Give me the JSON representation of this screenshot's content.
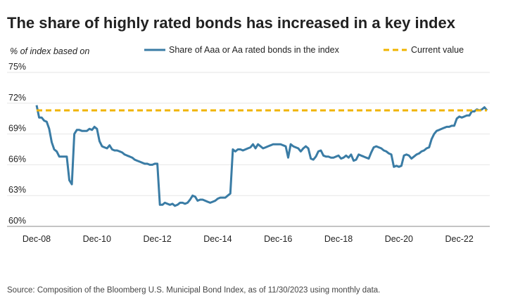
{
  "chart_data": {
    "type": "line",
    "title": "The share of highly rated bonds has increased in a key index",
    "subtitle": "% of index based on",
    "source": "Source: Composition of the Bloomberg U.S. Municipal Bond Index, as of 11/30/2023 using monthly data.",
    "x": [
      "Dec-08",
      "Jan-09",
      "Feb-09",
      "Mar-09",
      "Apr-09",
      "May-09",
      "Jun-09",
      "Jul-09",
      "Aug-09",
      "Sep-09",
      "Oct-09",
      "Nov-09",
      "Dec-09",
      "Jan-10",
      "Feb-10",
      "Mar-10",
      "Apr-10",
      "May-10",
      "Jun-10",
      "Jul-10",
      "Aug-10",
      "Sep-10",
      "Oct-10",
      "Nov-10",
      "Dec-10",
      "Jan-11",
      "Feb-11",
      "Mar-11",
      "Apr-11",
      "May-11",
      "Jun-11",
      "Jul-11",
      "Aug-11",
      "Sep-11",
      "Oct-11",
      "Nov-11",
      "Dec-11",
      "Jan-12",
      "Feb-12",
      "Mar-12",
      "Apr-12",
      "May-12",
      "Jun-12",
      "Jul-12",
      "Aug-12",
      "Sep-12",
      "Oct-12",
      "Nov-12",
      "Dec-12",
      "Jan-13",
      "Feb-13",
      "Mar-13",
      "Apr-13",
      "May-13",
      "Jun-13",
      "Jul-13",
      "Aug-13",
      "Sep-13",
      "Oct-13",
      "Nov-13",
      "Dec-13",
      "Jan-14",
      "Feb-14",
      "Mar-14",
      "Apr-14",
      "May-14",
      "Jun-14",
      "Jul-14",
      "Aug-14",
      "Sep-14",
      "Oct-14",
      "Nov-14",
      "Dec-14",
      "Jan-15",
      "Feb-15",
      "Mar-15",
      "Apr-15",
      "May-15",
      "Jun-15",
      "Jul-15",
      "Aug-15",
      "Sep-15",
      "Oct-15",
      "Nov-15",
      "Dec-15",
      "Jan-16",
      "Feb-16",
      "Mar-16",
      "Apr-16",
      "May-16",
      "Jun-16",
      "Jul-16",
      "Aug-16",
      "Sep-16",
      "Oct-16",
      "Nov-16",
      "Dec-16",
      "Jan-17",
      "Feb-17",
      "Mar-17",
      "Apr-17",
      "May-17",
      "Jun-17",
      "Jul-17",
      "Aug-17",
      "Sep-17",
      "Oct-17",
      "Nov-17",
      "Dec-17",
      "Jan-18",
      "Feb-18",
      "Mar-18",
      "Apr-18",
      "May-18",
      "Jun-18",
      "Jul-18",
      "Aug-18",
      "Sep-18",
      "Oct-18",
      "Nov-18",
      "Dec-18",
      "Jan-19",
      "Feb-19",
      "Mar-19",
      "Apr-19",
      "May-19",
      "Jun-19",
      "Jul-19",
      "Aug-19",
      "Sep-19",
      "Oct-19",
      "Nov-19",
      "Dec-19",
      "Jan-20",
      "Feb-20",
      "Mar-20",
      "Apr-20",
      "May-20",
      "Jun-20",
      "Jul-20",
      "Aug-20",
      "Sep-20",
      "Oct-20",
      "Nov-20",
      "Dec-20",
      "Jan-21",
      "Feb-21",
      "Mar-21",
      "Apr-21",
      "May-21",
      "Jun-21",
      "Jul-21",
      "Aug-21",
      "Sep-21",
      "Oct-21",
      "Nov-21",
      "Dec-21",
      "Jan-22",
      "Feb-22",
      "Mar-22",
      "Apr-22",
      "May-22",
      "Jun-22",
      "Jul-22",
      "Aug-22",
      "Sep-22",
      "Oct-22",
      "Nov-22",
      "Dec-22",
      "Jan-23",
      "Feb-23",
      "Mar-23",
      "Apr-23",
      "May-23",
      "Jun-23",
      "Jul-23",
      "Aug-23",
      "Sep-23",
      "Oct-23",
      "Nov-23"
    ],
    "series": [
      {
        "name": "Share of Aaa or Aa rated bonds in the index",
        "color": "#3a7ca5",
        "values": [
          71.8,
          70.6,
          70.6,
          70.3,
          70.2,
          69.5,
          68.2,
          67.5,
          67.3,
          66.8,
          66.8,
          66.8,
          66.8,
          64.5,
          64.1,
          69.0,
          69.4,
          69.4,
          69.3,
          69.3,
          69.3,
          69.5,
          69.4,
          69.7,
          69.5,
          68.3,
          67.8,
          67.7,
          67.6,
          67.9,
          67.5,
          67.4,
          67.4,
          67.3,
          67.2,
          67.0,
          66.9,
          66.8,
          66.7,
          66.5,
          66.4,
          66.3,
          66.2,
          66.1,
          66.1,
          66.0,
          66.0,
          66.1,
          66.1,
          62.1,
          62.1,
          62.3,
          62.2,
          62.1,
          62.2,
          62.0,
          62.1,
          62.3,
          62.3,
          62.2,
          62.3,
          62.6,
          63.0,
          62.9,
          62.5,
          62.6,
          62.6,
          62.5,
          62.4,
          62.3,
          62.4,
          62.5,
          62.7,
          62.8,
          62.8,
          62.8,
          63.0,
          63.2,
          67.5,
          67.3,
          67.5,
          67.5,
          67.4,
          67.5,
          67.6,
          67.7,
          68.0,
          67.6,
          68.0,
          67.8,
          67.6,
          67.7,
          67.8,
          67.9,
          68.0,
          68.0,
          68.0,
          68.0,
          67.9,
          67.8,
          66.7,
          68.0,
          67.8,
          67.7,
          67.6,
          67.3,
          67.6,
          67.8,
          67.6,
          66.6,
          66.5,
          66.8,
          67.3,
          67.4,
          66.9,
          66.8,
          66.8,
          66.7,
          66.7,
          66.8,
          66.9,
          66.6,
          66.7,
          66.9,
          66.7,
          67.0,
          66.4,
          66.5,
          67.0,
          66.9,
          66.8,
          66.7,
          66.6,
          67.2,
          67.7,
          67.8,
          67.7,
          67.6,
          67.4,
          67.3,
          67.1,
          67.0,
          65.8,
          65.9,
          65.8,
          65.9,
          66.9,
          67.0,
          66.9,
          66.6,
          66.8,
          67.0,
          67.1,
          67.3,
          67.4,
          67.6,
          67.7,
          68.5,
          69.0,
          69.3,
          69.4,
          69.5,
          69.6,
          69.7,
          69.7,
          69.8,
          69.8,
          70.5,
          70.7,
          70.6,
          70.7,
          70.8,
          70.8,
          71.2,
          71.2,
          71.4,
          71.3,
          71.4,
          71.6,
          71.3
        ]
      }
    ],
    "reference_line": {
      "name": "Current value",
      "value": 71.3,
      "color": "#f0b400"
    },
    "ylim": [
      60,
      75
    ],
    "yticks": [
      {
        "value": 60,
        "label": "60%"
      },
      {
        "value": 63,
        "label": "63%"
      },
      {
        "value": 66,
        "label": "66%"
      },
      {
        "value": 69,
        "label": "69%"
      },
      {
        "value": 72,
        "label": "72%"
      },
      {
        "value": 75,
        "label": "75%"
      }
    ],
    "xticks": [
      "Dec-08",
      "Dec-10",
      "Dec-12",
      "Dec-14",
      "Dec-16",
      "Dec-18",
      "Dec-20",
      "Dec-22"
    ],
    "grid": true
  }
}
